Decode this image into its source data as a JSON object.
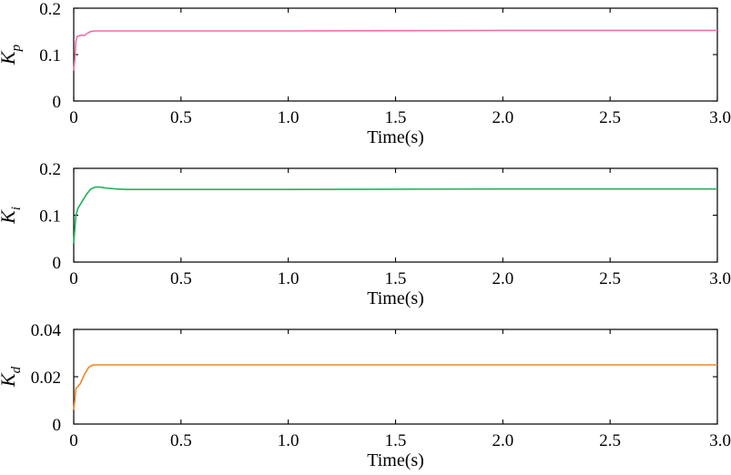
{
  "chart_data": [
    {
      "type": "line",
      "xlabel": "Time(s)",
      "ylabel": {
        "base": "K",
        "sub": "p"
      },
      "xlim": [
        0,
        3.0
      ],
      "ylim": [
        0,
        0.2
      ],
      "xticks": [
        "0",
        "0.5",
        "1.0",
        "1.5",
        "2.0",
        "2.5",
        "3.0"
      ],
      "yticks": [
        "0",
        "0.1",
        "0.2"
      ],
      "color": "#ee6fa8",
      "series": [
        {
          "x": [
            0,
            0.005,
            0.01,
            0.015,
            0.02,
            0.03,
            0.04,
            0.05,
            0.06,
            0.08,
            0.1,
            0.2,
            0.5,
            1.0,
            2.0,
            3.0
          ],
          "values": [
            0.065,
            0.09,
            0.128,
            0.138,
            0.14,
            0.141,
            0.142,
            0.141,
            0.145,
            0.15,
            0.151,
            0.151,
            0.151,
            0.151,
            0.152,
            0.152
          ]
        }
      ]
    },
    {
      "type": "line",
      "xlabel": "Time(s)",
      "ylabel": {
        "base": "K",
        "sub": "i"
      },
      "xlim": [
        0,
        3.0
      ],
      "ylim": [
        0,
        0.2
      ],
      "xticks": [
        "0",
        "0.5",
        "1.0",
        "1.5",
        "2.0",
        "2.5",
        "3.0"
      ],
      "yticks": [
        "0",
        "0.1",
        "0.2"
      ],
      "color": "#1db35b",
      "series": [
        {
          "x": [
            0,
            0.005,
            0.01,
            0.02,
            0.04,
            0.06,
            0.08,
            0.1,
            0.12,
            0.15,
            0.2,
            0.25,
            0.3,
            1.0,
            2.0,
            3.0
          ],
          "values": [
            0.04,
            0.07,
            0.1,
            0.115,
            0.13,
            0.145,
            0.156,
            0.16,
            0.16,
            0.158,
            0.156,
            0.155,
            0.155,
            0.155,
            0.156,
            0.156
          ]
        }
      ]
    },
    {
      "type": "line",
      "xlabel": "Time(s)",
      "ylabel": {
        "base": "K",
        "sub": "d"
      },
      "xlim": [
        0,
        3.0
      ],
      "ylim": [
        0,
        0.04
      ],
      "xticks": [
        "0",
        "0.5",
        "1.0",
        "1.5",
        "2.0",
        "2.5",
        "3.0"
      ],
      "yticks": [
        "0",
        "0.02",
        "0.04"
      ],
      "color": "#f5851f",
      "series": [
        {
          "x": [
            0,
            0.005,
            0.01,
            0.02,
            0.03,
            0.05,
            0.07,
            0.09,
            0.1,
            0.2,
            0.5,
            1.0,
            2.0,
            3.0
          ],
          "values": [
            0.006,
            0.01,
            0.015,
            0.016,
            0.017,
            0.021,
            0.024,
            0.025,
            0.025,
            0.025,
            0.025,
            0.025,
            0.025,
            0.025
          ]
        }
      ]
    }
  ]
}
